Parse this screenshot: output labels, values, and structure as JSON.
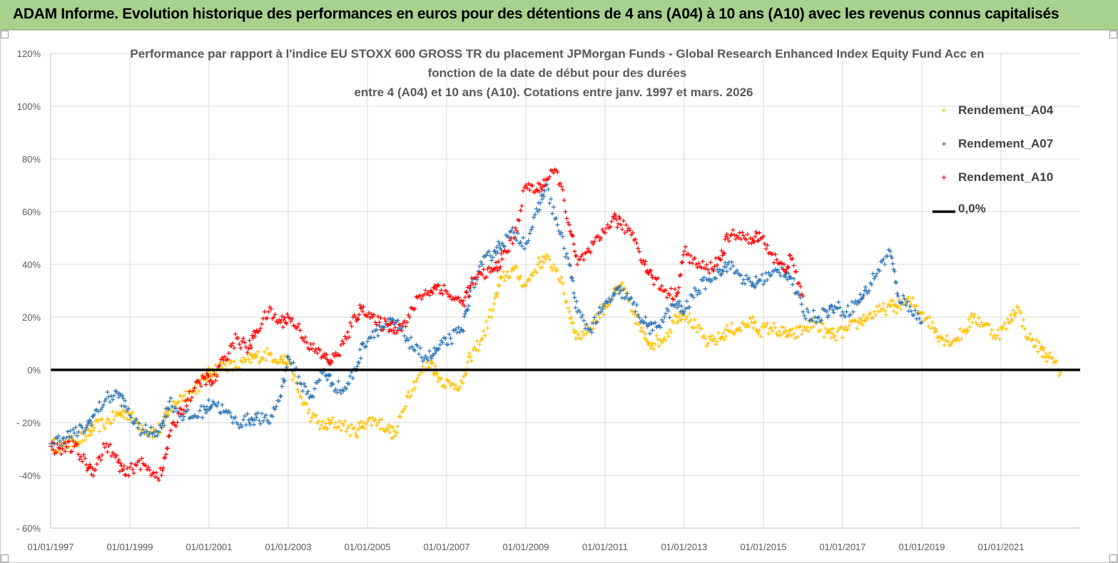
{
  "banner": {
    "title": "ADAM Informe. Evolution historique des performances en euros pour des détentions de 4 ans (A04) à 10 ans (A10) avec les revenus connus capitalisés"
  },
  "chart_data": {
    "type": "scatter",
    "title_lines": [
      "Performance par rapport à l'indice EU STOXX 600 GROSS TR  du placement JPMorgan Funds - Global Research Enhanced Index Equity Fund Acc en",
      "fonction de la date de début pour des durées",
      "entre 4 (A04) et 10 ans (A10). Cotations entre janv. 1997 et mars. 2026"
    ],
    "x_range": [
      1997.0,
      2023.0
    ],
    "ylim": [
      -60,
      120
    ],
    "y_ticks": [
      -60,
      -40,
      -20,
      0,
      20,
      40,
      60,
      80,
      100,
      120
    ],
    "y_tick_labels": [
      "- 60%",
      "-40%",
      "- 20%",
      "0%",
      "20%",
      "40%",
      "60%",
      "80%",
      "100%",
      "120%"
    ],
    "x_ticks": [
      1997,
      1999,
      2001,
      2003,
      2005,
      2007,
      2009,
      2011,
      2013,
      2015,
      2017,
      2019,
      2021
    ],
    "x_tick_labels": [
      "01/01/1997",
      "01/01/1999",
      "01/01/2001",
      "01/01/2003",
      "01/01/2005",
      "01/01/2007",
      "01/01/2009",
      "01/01/2011",
      "01/01/2013",
      "01/01/2015",
      "01/01/2017",
      "01/01/2019",
      "01/01/2021"
    ],
    "grid": true,
    "legend_position": "top-right",
    "series": [
      {
        "name": "Rendement_A04",
        "color": "#ffc000",
        "marker": "plus",
        "x": [
          1997.0,
          1997.3,
          1997.6,
          1997.9,
          1998.1,
          1998.4,
          1998.7,
          1998.9,
          1999.2,
          1999.5,
          1999.8,
          2000.0,
          2000.3,
          2000.6,
          2000.9,
          2001.1,
          2001.4,
          2001.7,
          2002.0,
          2002.2,
          2002.5,
          2002.8,
          2003.0,
          2003.3,
          2003.6,
          2003.9,
          2004.1,
          2004.4,
          2004.7,
          2004.9,
          2005.2,
          2005.5,
          2005.7,
          2006.0,
          2006.3,
          2006.6,
          2006.8,
          2007.1,
          2007.4,
          2007.6,
          2007.9,
          2008.2,
          2008.4,
          2008.7,
          2009.0,
          2009.3,
          2009.5,
          2009.8,
          2010.1,
          2010.3,
          2010.6,
          2010.9,
          2011.2,
          2011.4,
          2011.7,
          2012.0,
          2012.2,
          2012.5,
          2012.8,
          2013.0,
          2013.3,
          2013.6,
          2013.9,
          2014.1,
          2014.4,
          2014.7,
          2014.9,
          2015.2,
          2015.5,
          2015.7,
          2016.0,
          2016.3,
          2016.6,
          2016.8,
          2017.1,
          2017.4,
          2017.6,
          2017.9,
          2018.2,
          2018.4,
          2018.7,
          2019.0,
          2019.3,
          2019.5,
          2019.8,
          2020.1,
          2020.3,
          2020.6,
          2020.9,
          2021.2,
          2021.4,
          2021.7,
          2022.0,
          2022.2,
          2022.5
        ],
        "y": [
          -28,
          -29,
          -27,
          -25,
          -22,
          -20,
          -17,
          -16,
          -20,
          -24,
          -22,
          -15,
          -10,
          -8,
          -3,
          0,
          2,
          1,
          4,
          5,
          6,
          4,
          3,
          -10,
          -18,
          -22,
          -20,
          -21,
          -24,
          -20,
          -19,
          -22,
          -25,
          -10,
          -2,
          3,
          -3,
          -6,
          -5,
          5,
          12,
          25,
          35,
          38,
          32,
          40,
          42,
          38,
          22,
          12,
          16,
          22,
          28,
          32,
          22,
          12,
          10,
          12,
          20,
          22,
          16,
          10,
          12,
          15,
          16,
          18,
          15,
          16,
          14,
          13,
          15,
          18,
          14,
          13,
          15,
          18,
          20,
          22,
          24,
          24,
          26,
          22,
          16,
          12,
          11,
          15,
          20,
          17,
          13,
          18,
          24,
          12,
          8,
          5,
          -1
        ]
      },
      {
        "name": "Rendement_A07",
        "color": "#2e75b6",
        "marker": "plus",
        "x": [
          1997.0,
          1997.3,
          1997.6,
          1997.9,
          1998.1,
          1998.4,
          1998.7,
          1998.9,
          1999.2,
          1999.5,
          1999.8,
          2000.0,
          2000.3,
          2000.6,
          2000.9,
          2001.1,
          2001.4,
          2001.7,
          2002.0,
          2002.2,
          2002.5,
          2002.8,
          2003.0,
          2003.3,
          2003.6,
          2003.9,
          2004.1,
          2004.4,
          2004.7,
          2004.9,
          2005.2,
          2005.5,
          2005.7,
          2006.0,
          2006.3,
          2006.6,
          2006.8,
          2007.1,
          2007.4,
          2007.6,
          2007.9,
          2008.2,
          2008.4,
          2008.7,
          2009.0,
          2009.3,
          2009.5,
          2009.8,
          2010.1,
          2010.3,
          2010.6,
          2010.9,
          2011.2,
          2011.4,
          2011.7,
          2012.0,
          2012.2,
          2012.5,
          2012.8,
          2013.0,
          2013.3,
          2013.6,
          2013.9,
          2014.1,
          2014.4,
          2014.7,
          2014.9,
          2015.2,
          2015.5,
          2015.7,
          2016.0,
          2016.3,
          2016.6,
          2016.8,
          2017.1,
          2017.4,
          2017.6,
          2017.9,
          2018.2,
          2018.4,
          2018.7,
          2019.0
        ],
        "y": [
          -28,
          -26,
          -24,
          -22,
          -17,
          -11,
          -9,
          -14,
          -22,
          -24,
          -22,
          -12,
          -17,
          -18,
          -15,
          -12,
          -16,
          -20,
          -19,
          -18,
          -20,
          -10,
          5,
          -5,
          -10,
          0,
          -5,
          -8,
          0,
          10,
          15,
          17,
          18,
          12,
          6,
          5,
          8,
          12,
          15,
          30,
          40,
          45,
          48,
          52,
          48,
          60,
          70,
          55,
          40,
          22,
          15,
          22,
          28,
          30,
          25,
          18,
          15,
          20,
          25,
          22,
          30,
          34,
          38,
          40,
          36,
          32,
          34,
          36,
          38,
          35,
          22,
          20,
          22,
          24,
          22,
          26,
          30,
          38,
          45,
          28,
          24,
          18
        ]
      },
      {
        "name": "Rendement_A10",
        "color": "#ff0000",
        "marker": "plus",
        "x": [
          1997.0,
          1997.3,
          1997.6,
          1997.9,
          1998.1,
          1998.4,
          1998.7,
          1998.9,
          1999.2,
          1999.5,
          1999.8,
          2000.0,
          2000.3,
          2000.6,
          2000.9,
          2001.1,
          2001.4,
          2001.7,
          2002.0,
          2002.2,
          2002.5,
          2002.8,
          2003.0,
          2003.3,
          2003.6,
          2003.9,
          2004.1,
          2004.4,
          2004.7,
          2004.9,
          2005.2,
          2005.5,
          2005.7,
          2006.0,
          2006.3,
          2006.6,
          2006.8,
          2007.1,
          2007.4,
          2007.6,
          2007.9,
          2008.2,
          2008.4,
          2008.7,
          2009.0,
          2009.3,
          2009.5,
          2009.8,
          2010.1,
          2010.3,
          2010.6,
          2010.9,
          2011.2,
          2011.4,
          2011.7,
          2012.0,
          2012.2,
          2012.5,
          2012.8,
          2013.0,
          2013.3,
          2013.6,
          2013.9,
          2014.1,
          2014.4,
          2014.7,
          2014.9,
          2015.2,
          2015.5,
          2015.7,
          2016.0
        ],
        "y": [
          -29,
          -30,
          -29,
          -36,
          -38,
          -28,
          -35,
          -40,
          -35,
          -38,
          -40,
          -25,
          -15,
          -8,
          -3,
          -5,
          5,
          12,
          8,
          15,
          22,
          18,
          20,
          15,
          8,
          5,
          3,
          10,
          20,
          24,
          18,
          17,
          16,
          18,
          28,
          30,
          32,
          28,
          25,
          32,
          36,
          38,
          42,
          50,
          70,
          68,
          72,
          75,
          55,
          40,
          45,
          50,
          58,
          55,
          52,
          40,
          35,
          30,
          28,
          45,
          40,
          38,
          42,
          50,
          52,
          48,
          52,
          44,
          38,
          42,
          28
        ]
      },
      {
        "name": "0,0%",
        "color": "#000000",
        "marker": "line",
        "x": [
          1997.0,
          2023.0
        ],
        "y": [
          0,
          0
        ]
      }
    ]
  }
}
